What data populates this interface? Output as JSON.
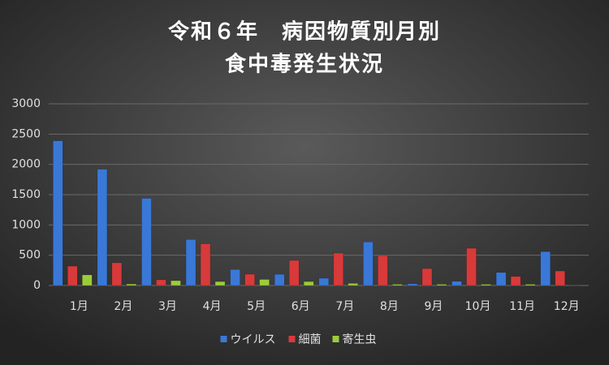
{
  "chart_data": {
    "type": "bar",
    "title": [
      "令和６年　病因物質別月別",
      "食中毒発生状況"
    ],
    "categories": [
      "1月",
      "2月",
      "3月",
      "4月",
      "5月",
      "6月",
      "7月",
      "8月",
      "9月",
      "10月",
      "11月",
      "12月"
    ],
    "series": [
      {
        "name": "ウイルス",
        "color": "#3a78d8",
        "values": [
          2390,
          1920,
          1440,
          760,
          265,
          185,
          120,
          720,
          30,
          70,
          215,
          560
        ]
      },
      {
        "name": "細菌",
        "color": "#d83a3a",
        "values": [
          320,
          375,
          95,
          690,
          187,
          415,
          535,
          495,
          280,
          615,
          150,
          240
        ]
      },
      {
        "name": "寄生虫",
        "color": "#9ccc3a",
        "values": [
          175,
          25,
          80,
          65,
          100,
          65,
          35,
          20,
          20,
          20,
          20,
          5
        ]
      }
    ],
    "ylim": [
      0,
      3000
    ],
    "yticks": [
      0,
      500,
      1000,
      1500,
      2000,
      2500,
      3000
    ],
    "grid": true,
    "legend": "bottom"
  }
}
